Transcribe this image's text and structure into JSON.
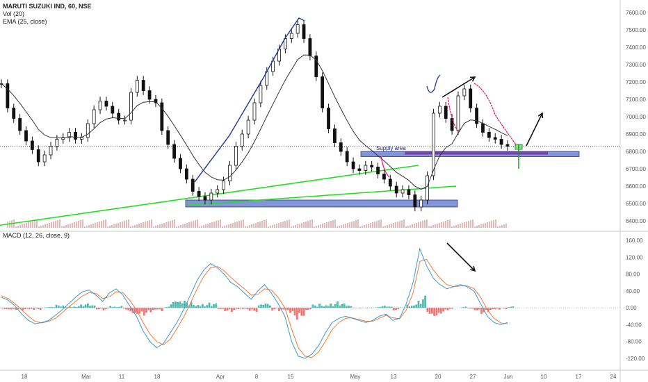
{
  "legend": {
    "symbol": "MARUTI SUZUKI IND, 60, NSE",
    "volume": "Vol (20)",
    "ema": "EMA (25, close)",
    "macd": "MACD (12, 26, close, 9)"
  },
  "annotations": {
    "supply_label": "Supply area"
  },
  "colors": {
    "candle": "#111111",
    "ema": "#333333",
    "support_box": "#5b72c8",
    "trend_green": "#22dd22",
    "purple_line": "#7b3fa8",
    "macd_line": "#3a9ad9",
    "signal_line": "#f07a3a",
    "hist_pos": "#26a69a",
    "hist_neg": "#ef5350",
    "blue_drawing": "#2a3d9f",
    "pink_drawing": "#e0146e"
  },
  "chart_data": [
    {
      "type": "line",
      "series": [
        {
          "values": [
            7190,
            7050,
            6990,
            6920,
            6860,
            6810,
            6740,
            6780,
            6830,
            6870,
            6880,
            6910,
            6870,
            6880,
            6960,
            7040,
            7090,
            7060,
            7020,
            6980,
            6980,
            7140,
            7210,
            7150,
            7100,
            7080,
            6920,
            6840,
            6760,
            6700,
            6640,
            6570,
            6540,
            6520,
            6560,
            6580,
            6630,
            6720,
            6830,
            6900,
            6980,
            7080,
            7180,
            7260,
            7320,
            7390,
            7450,
            7480,
            7530,
            7450,
            7350,
            7230,
            7050,
            6930,
            6850,
            6800,
            6740,
            6700,
            6690,
            6720,
            6710,
            6670,
            6640,
            6600,
            6560,
            6580,
            6550,
            6480,
            6520,
            6660,
            7020,
            7060,
            6990,
            6920,
            7120,
            7160,
            7050,
            6960,
            6910,
            6880,
            6870,
            6840,
            6830
          ],
          "dates": [
            "Feb 18",
            "",
            "",
            "",
            "",
            "",
            "",
            "",
            "",
            "",
            "",
            "",
            "",
            "",
            "Mar 11",
            "",
            "",
            "",
            "",
            "",
            "",
            "",
            "Mar 18",
            "",
            "",
            "",
            "",
            "",
            "",
            "",
            "Apr",
            "",
            "",
            "",
            "",
            "",
            "",
            "",
            "Apr 8",
            "",
            "",
            "",
            "",
            "",
            "",
            "",
            "Apr 15",
            "",
            "",
            "",
            "",
            "",
            "",
            "",
            "May",
            "",
            "",
            "",
            "",
            "",
            "",
            "",
            "May 13",
            "",
            "",
            "",
            "",
            "",
            "",
            "",
            "May 20",
            "",
            "",
            "",
            "",
            "",
            "May 27",
            "",
            "",
            "",
            "",
            "",
            "Jun"
          ]
        }
      ],
      "x_ticks": [
        "18",
        "Mar",
        "11",
        "18",
        "Apr",
        "8",
        "15",
        "May",
        "13",
        "20",
        "27",
        "Jun",
        "10",
        "17",
        "24"
      ],
      "y_ticks": [
        7600.0,
        7500.0,
        7400.0,
        7300.0,
        7200.0,
        7100.0,
        7000.0,
        6900.0,
        6800.0,
        6700.0,
        6600.0,
        6500.0,
        6400.0
      ],
      "ylim": [
        6360,
        7640
      ]
    },
    {
      "type": "line",
      "series": [
        {
          "name": "MACD",
          "values": [
            25,
            18,
            5,
            -15,
            -30,
            -38,
            -35,
            -30,
            -18,
            -5,
            10,
            25,
            38,
            42,
            30,
            15,
            35,
            45,
            30,
            5,
            -20,
            -55,
            -80,
            -95,
            -85,
            -60,
            -35,
            -5,
            30,
            65,
            90,
            105,
            95,
            80,
            60,
            50,
            35,
            20,
            40,
            55,
            35,
            10,
            -20,
            -80,
            -115,
            -120,
            -110,
            -90,
            -60,
            -35,
            -25,
            -20,
            -25,
            -30,
            -35,
            -30,
            -20,
            -15,
            -30,
            -25,
            10,
            60,
            140,
            100,
            70,
            55,
            45,
            50,
            55,
            50,
            40,
            10,
            -20,
            -35,
            -40,
            -35
          ]
        },
        {
          "name": "Signal",
          "values": [
            28,
            22,
            10,
            -5,
            -20,
            -32,
            -36,
            -32,
            -25,
            -12,
            2,
            15,
            28,
            36,
            34,
            22,
            26,
            38,
            36,
            18,
            -5,
            -35,
            -62,
            -80,
            -88,
            -75,
            -50,
            -22,
            10,
            45,
            75,
            95,
            98,
            88,
            72,
            58,
            45,
            30,
            32,
            45,
            42,
            25,
            0,
            -50,
            -95,
            -115,
            -118,
            -105,
            -80,
            -52,
            -35,
            -25,
            -24,
            -28,
            -32,
            -32,
            -25,
            -18,
            -24,
            -26,
            -5,
            35,
            110,
            115,
            90,
            70,
            55,
            50,
            52,
            52,
            46,
            25,
            -5,
            -25,
            -36,
            -38
          ]
        }
      ],
      "x_ticks": [
        "18",
        "Mar",
        "11",
        "18",
        "Apr",
        "8",
        "15",
        "May",
        "13",
        "20",
        "27",
        "Jun",
        "10",
        "17",
        "24"
      ],
      "y_ticks": [
        160.0,
        120.0,
        80.0,
        40.0,
        0.0,
        -40.0,
        -80.0,
        -120.0
      ],
      "ylim": [
        -135,
        170
      ]
    }
  ]
}
